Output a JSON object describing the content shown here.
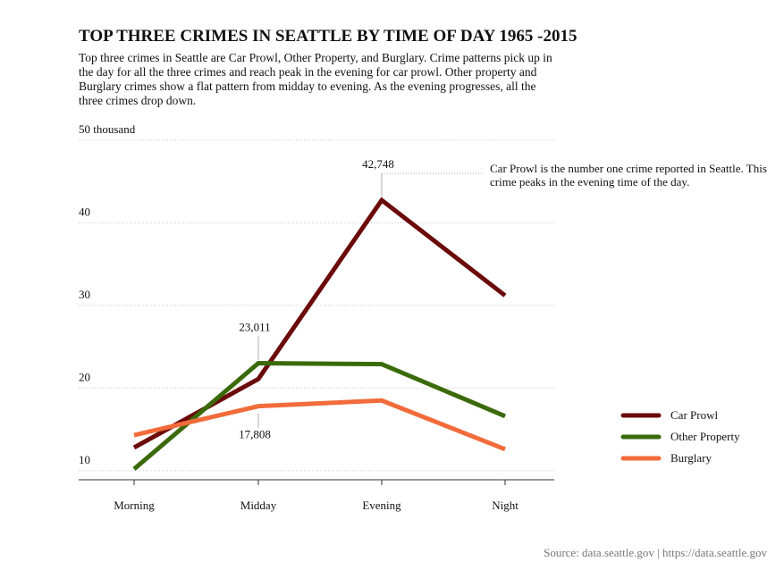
{
  "chart_data": {
    "type": "line",
    "title": "TOP THREE CRIMES IN SEATTLE BY TIME OF DAY 1965 -2015",
    "subtitle": "Top three crimes in Seattle are Car Prowl, Other Property, and Burglary. Crime patterns pick up in the day for all the three crimes and reach peak in the evening for car prowl. Other property and Burglary crimes show a flat pattern from midday to evening. As the evening progresses, all the three crimes drop down.",
    "annotation": "Car Prowl is the number one crime reported in Seattle. This crime peaks in the evening time of the day.",
    "source": "Source: data.seattle.gov | https://data.seattle.gov",
    "categories": [
      "Morning",
      "Midday",
      "Evening",
      "Night"
    ],
    "series": [
      {
        "name": "Car Prowl",
        "color": "#6b0a0a",
        "values": [
          12.8,
          21.1,
          42.748,
          31.2
        ],
        "value_labels": [
          null,
          null,
          "42,748",
          null
        ]
      },
      {
        "name": "Other Property",
        "color": "#3a6a0a",
        "values": [
          10.2,
          23.011,
          22.9,
          16.6
        ],
        "value_labels": [
          null,
          "23,011",
          null,
          null
        ]
      },
      {
        "name": "Burglary",
        "color": "#f26b3a",
        "values": [
          14.3,
          17.808,
          18.5,
          12.6
        ],
        "value_labels": [
          null,
          "17,808",
          null,
          null
        ]
      }
    ],
    "ylim": [
      8.9,
      50
    ],
    "yticks": [
      10,
      20,
      30,
      40,
      {
        "value": 50,
        "label": "50 thousand"
      }
    ],
    "grid": true,
    "legend": "right"
  }
}
